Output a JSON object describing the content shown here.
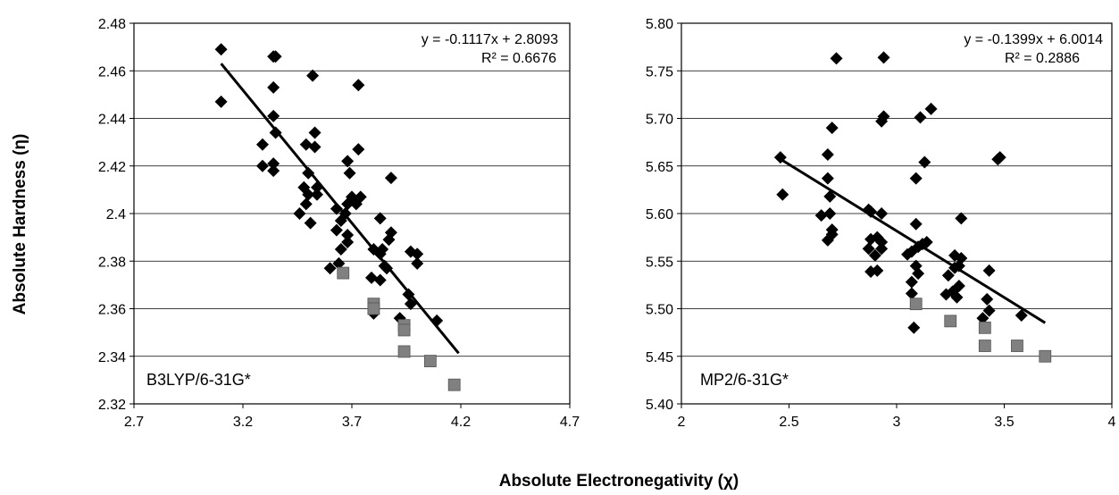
{
  "ylabel": "Absolute Hardness (η)",
  "xlabel": "Absolute Electronegativity (χ)",
  "chart_data": [
    {
      "type": "scatter",
      "method_label": "B3LYP/6-31G*",
      "equation": "y = -0.1117x + 2.8093",
      "r_squared": "R² = 0.6676",
      "trendline": {
        "slope": -0.1117,
        "intercept": 2.8093,
        "x_range": [
          3.1,
          4.19
        ]
      },
      "xlim": [
        2.7,
        4.7
      ],
      "ylim": [
        2.32,
        2.48
      ],
      "xticks": [
        "2.7",
        "3.2",
        "3.7",
        "4.2",
        "4.7"
      ],
      "yticks": [
        "2.32",
        "2.34",
        "2.36",
        "2.38",
        "2.4",
        "2.42",
        "2.44",
        "2.46",
        "2.48"
      ],
      "grid": "horizontal",
      "series": [
        {
          "marker": "diamond",
          "color": "#000000",
          "points": [
            [
              3.1,
              2.469
            ],
            [
              3.1,
              2.447
            ],
            [
              3.29,
              2.429
            ],
            [
              3.29,
              2.42
            ],
            [
              3.34,
              2.466
            ],
            [
              3.35,
              2.466
            ],
            [
              3.34,
              2.453
            ],
            [
              3.34,
              2.441
            ],
            [
              3.35,
              2.434
            ],
            [
              3.34,
              2.421
            ],
            [
              3.34,
              2.418
            ],
            [
              3.52,
              2.458
            ],
            [
              3.49,
              2.429
            ],
            [
              3.53,
              2.428
            ],
            [
              3.53,
              2.434
            ],
            [
              3.73,
              2.454
            ],
            [
              3.73,
              2.427
            ],
            [
              3.48,
              2.411
            ],
            [
              3.5,
              2.417
            ],
            [
              3.5,
              2.408
            ],
            [
              3.54,
              2.411
            ],
            [
              3.54,
              2.408
            ],
            [
              3.49,
              2.404
            ],
            [
              3.46,
              2.4
            ],
            [
              3.51,
              2.396
            ],
            [
              3.68,
              2.422
            ],
            [
              3.69,
              2.417
            ],
            [
              3.7,
              2.407
            ],
            [
              3.72,
              2.404
            ],
            [
              3.74,
              2.407
            ],
            [
              3.88,
              2.415
            ],
            [
              3.63,
              2.402
            ],
            [
              3.65,
              2.397
            ],
            [
              3.67,
              2.4
            ],
            [
              3.68,
              2.404
            ],
            [
              3.63,
              2.393
            ],
            [
              3.68,
              2.391
            ],
            [
              3.68,
              2.388
            ],
            [
              3.65,
              2.385
            ],
            [
              3.6,
              2.377
            ],
            [
              3.64,
              2.379
            ],
            [
              3.83,
              2.398
            ],
            [
              3.84,
              2.385
            ],
            [
              3.87,
              2.389
            ],
            [
              3.88,
              2.392
            ],
            [
              3.8,
              2.385
            ],
            [
              3.83,
              2.383
            ],
            [
              3.85,
              2.378
            ],
            [
              3.86,
              2.377
            ],
            [
              3.79,
              2.373
            ],
            [
              3.83,
              2.372
            ],
            [
              3.97,
              2.384
            ],
            [
              4.0,
              2.383
            ],
            [
              4.0,
              2.379
            ],
            [
              3.96,
              2.366
            ],
            [
              3.97,
              2.362
            ],
            [
              3.92,
              2.356
            ],
            [
              4.09,
              2.355
            ],
            [
              3.8,
              2.358
            ]
          ]
        },
        {
          "marker": "square",
          "color": "#808080",
          "points": [
            [
              3.66,
              2.375
            ],
            [
              3.8,
              2.362
            ],
            [
              3.8,
              2.36
            ],
            [
              3.94,
              2.353
            ],
            [
              3.94,
              2.351
            ],
            [
              3.94,
              2.342
            ],
            [
              4.06,
              2.338
            ],
            [
              4.17,
              2.328
            ]
          ]
        }
      ]
    },
    {
      "type": "scatter",
      "method_label": "MP2/6-31G*",
      "equation": "y = -0.1399x + 6.0014",
      "r_squared": "R² = 0.2886",
      "trendline": {
        "slope": -0.1399,
        "intercept": 6.0014,
        "x_range": [
          2.45,
          3.69
        ]
      },
      "xlim": [
        2,
        4
      ],
      "ylim": [
        5.4,
        5.8
      ],
      "xticks": [
        "2",
        "2.5",
        "3",
        "3.5",
        "4"
      ],
      "yticks": [
        "5.40",
        "5.45",
        "5.50",
        "5.55",
        "5.60",
        "5.65",
        "5.70",
        "5.75",
        "5.80"
      ],
      "grid": "horizontal",
      "series": [
        {
          "marker": "diamond",
          "color": "#000000",
          "points": [
            [
              2.46,
              5.659
            ],
            [
              2.47,
              5.62
            ],
            [
              2.72,
              5.763
            ],
            [
              2.94,
              5.764
            ],
            [
              2.7,
              5.69
            ],
            [
              2.68,
              5.662
            ],
            [
              2.68,
              5.637
            ],
            [
              2.69,
              5.618
            ],
            [
              2.65,
              5.598
            ],
            [
              2.69,
              5.6
            ],
            [
              2.7,
              5.583
            ],
            [
              2.7,
              5.578
            ],
            [
              2.68,
              5.572
            ],
            [
              2.93,
              5.697
            ],
            [
              2.94,
              5.702
            ],
            [
              3.11,
              5.701
            ],
            [
              3.16,
              5.71
            ],
            [
              3.13,
              5.654
            ],
            [
              3.09,
              5.637
            ],
            [
              3.48,
              5.659
            ],
            [
              3.47,
              5.657
            ],
            [
              2.87,
              5.604
            ],
            [
              2.88,
              5.602
            ],
            [
              2.93,
              5.6
            ],
            [
              3.3,
              5.595
            ],
            [
              3.09,
              5.589
            ],
            [
              2.87,
              5.563
            ],
            [
              2.88,
              5.573
            ],
            [
              2.91,
              5.575
            ],
            [
              2.93,
              5.57
            ],
            [
              2.93,
              5.563
            ],
            [
              2.9,
              5.556
            ],
            [
              2.88,
              5.539
            ],
            [
              2.91,
              5.54
            ],
            [
              3.05,
              5.557
            ],
            [
              3.07,
              5.56
            ],
            [
              3.1,
              5.565
            ],
            [
              3.12,
              5.568
            ],
            [
              3.14,
              5.57
            ],
            [
              3.09,
              5.545
            ],
            [
              3.1,
              5.537
            ],
            [
              3.07,
              5.528
            ],
            [
              3.07,
              5.516
            ],
            [
              3.08,
              5.48
            ],
            [
              3.27,
              5.556
            ],
            [
              3.3,
              5.553
            ],
            [
              3.27,
              5.543
            ],
            [
              3.29,
              5.545
            ],
            [
              3.24,
              5.535
            ],
            [
              3.23,
              5.515
            ],
            [
              3.26,
              5.518
            ],
            [
              3.28,
              5.512
            ],
            [
              3.29,
              5.524
            ],
            [
              3.43,
              5.54
            ],
            [
              3.42,
              5.51
            ],
            [
              3.43,
              5.498
            ],
            [
              3.4,
              5.49
            ],
            [
              3.58,
              5.493
            ]
          ]
        },
        {
          "marker": "square",
          "color": "#808080",
          "points": [
            [
              3.09,
              5.505
            ],
            [
              3.25,
              5.487
            ],
            [
              3.41,
              5.48
            ],
            [
              3.41,
              5.461
            ],
            [
              3.56,
              5.461
            ],
            [
              3.69,
              5.45
            ]
          ]
        }
      ]
    }
  ]
}
